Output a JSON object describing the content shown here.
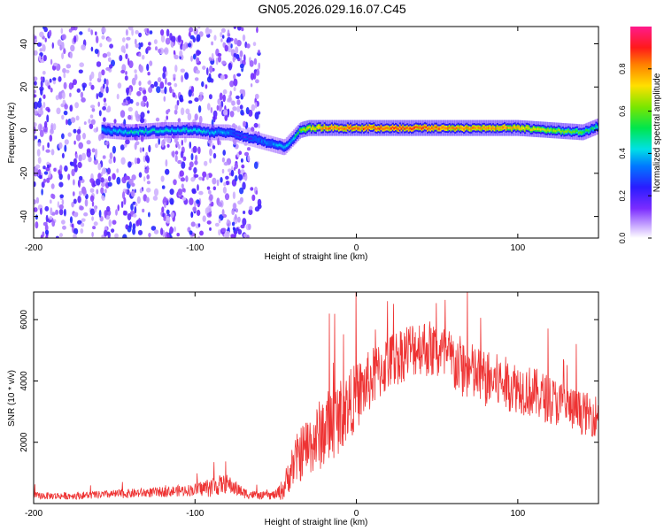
{
  "title": "GN05.2026.029.16.07.C45",
  "chart_data": [
    {
      "type": "heatmap",
      "title": "GN05.2026.029.16.07.C45",
      "xlabel": "Height of straight line (km)",
      "ylabel": "Frequency (Hz)",
      "xlim": [
        -200,
        150
      ],
      "ylim": [
        -50,
        48
      ],
      "xticks": [
        -200,
        -100,
        0,
        100
      ],
      "yticks": [
        -40,
        -20,
        0,
        20,
        40
      ],
      "colorbar": {
        "label": "Normalized spectral amplitude",
        "range": [
          0,
          1
        ],
        "ticks": [
          0.0,
          0.2,
          0.4,
          0.6,
          0.8
        ],
        "colormap": "purple-blue-cyan-green-yellow-red-magenta"
      },
      "noise_region_x": [
        -200,
        -60
      ],
      "signal_band": {
        "x": [
          -158,
          -140,
          -120,
          -100,
          -90,
          -80,
          -75,
          -70,
          -60,
          -50,
          -45,
          -40,
          -35,
          -30,
          -20,
          0,
          20,
          40,
          60,
          80,
          100,
          120,
          140,
          150
        ],
        "frequency": [
          0,
          -1,
          0,
          0,
          -1,
          -1,
          -2,
          -3,
          -5,
          -7,
          -8,
          -4,
          0,
          1,
          1,
          1,
          1,
          1,
          1,
          1,
          1,
          0,
          -1,
          2
        ],
        "amplitude": [
          0.35,
          0.45,
          0.42,
          0.45,
          0.38,
          0.35,
          0.25,
          0.2,
          0.3,
          0.35,
          0.4,
          0.4,
          0.6,
          0.7,
          0.8,
          0.85,
          0.85,
          0.85,
          0.8,
          0.8,
          0.75,
          0.65,
          0.55,
          0.45
        ]
      }
    },
    {
      "type": "line",
      "xlabel": "Height of straight line (km)",
      "ylabel": "SNR (10 * v/v)",
      "xlim": [
        -200,
        150
      ],
      "ylim": [
        0,
        6900
      ],
      "xticks": [
        -200,
        -100,
        0,
        100
      ],
      "yticks": [
        2000,
        4000,
        6000
      ],
      "color": "#ee3333",
      "series": [
        {
          "x": [
            -200,
            -180,
            -160,
            -140,
            -120,
            -100,
            -90,
            -80,
            -75,
            -70,
            -60,
            -50,
            -45,
            -40,
            -35,
            -30,
            -25,
            -20,
            -15,
            -10,
            -5,
            0,
            10,
            20,
            30,
            40,
            50,
            60,
            70,
            80,
            90,
            100,
            110,
            120,
            130,
            140,
            150
          ],
          "y": [
            250,
            250,
            280,
            330,
            380,
            450,
            550,
            650,
            500,
            350,
            250,
            280,
            500,
            1200,
            1600,
            1900,
            2100,
            2400,
            2600,
            2900,
            3200,
            3500,
            4100,
            4600,
            4950,
            5150,
            4950,
            4600,
            4300,
            4050,
            3950,
            3800,
            3600,
            3400,
            3150,
            2950,
            2850
          ],
          "amp": [
            120,
            120,
            130,
            150,
            170,
            200,
            350,
            300,
            250,
            180,
            120,
            150,
            400,
            700,
            900,
            1000,
            1100,
            1250,
            1250,
            1200,
            1150,
            1100,
            1000,
            950,
            950,
            950,
            1000,
            1050,
            1000,
            950,
            900,
            850,
            850,
            800,
            750,
            700,
            700
          ]
        }
      ]
    }
  ]
}
